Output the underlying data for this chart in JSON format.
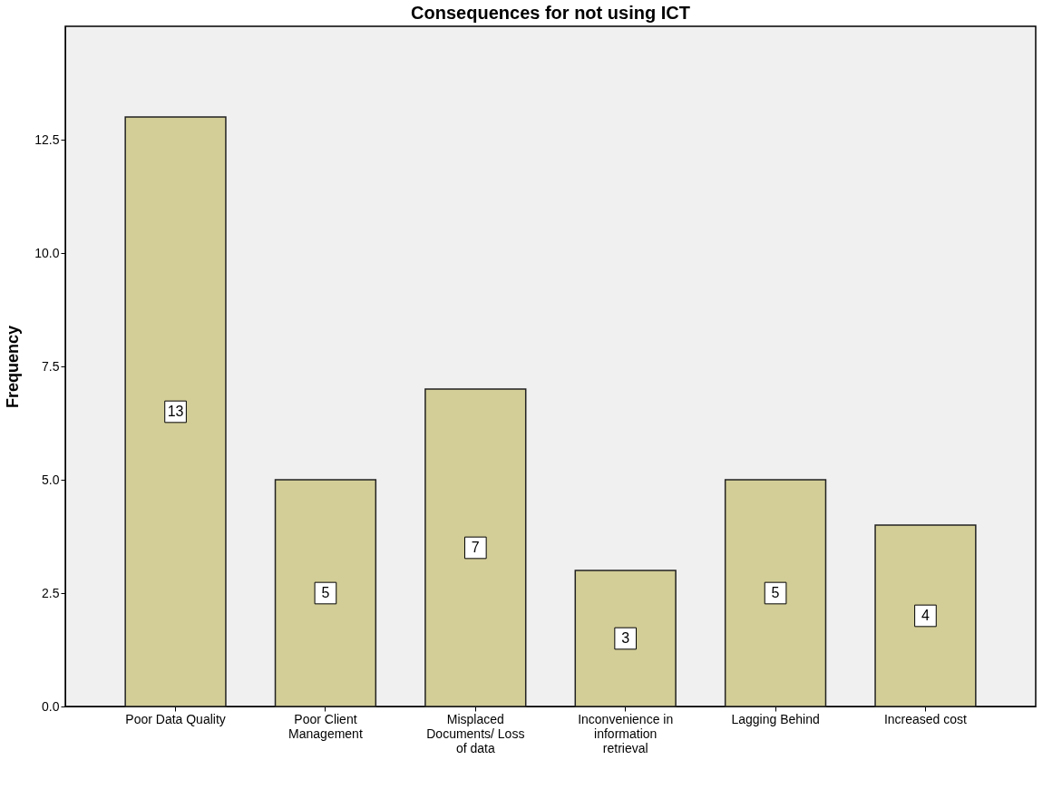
{
  "chart_data": {
    "type": "bar",
    "title": "Consequences for not using ICT",
    "ylabel": "Frequency",
    "categories": [
      "Poor Data Quality",
      "Poor Client Management",
      "Misplaced Documents/ Loss of data",
      "Inconvenience in information retrieval",
      "Lagging Behind",
      "Increased cost"
    ],
    "values": [
      13,
      5,
      7,
      3,
      5,
      4
    ],
    "color": "#d3ce97",
    "data_labels": true,
    "grid": false,
    "ylim": [
      0,
      15
    ],
    "yticks": [
      {
        "value": 0,
        "label": "0.0"
      },
      {
        "value": 2.5,
        "label": "2.5"
      },
      {
        "value": 5,
        "label": "5.0"
      },
      {
        "value": 7.5,
        "label": "7.5"
      },
      {
        "value": 10,
        "label": "10.0"
      },
      {
        "value": 12.5,
        "label": "12.5"
      }
    ]
  }
}
